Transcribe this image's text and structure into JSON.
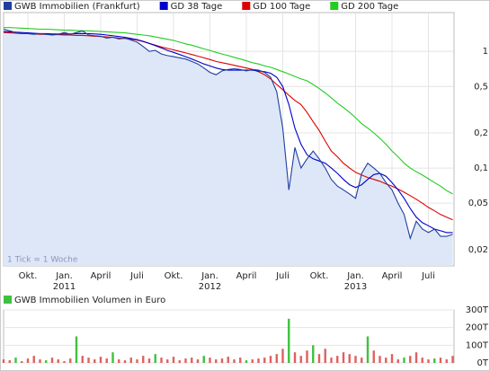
{
  "chart_data": [
    {
      "type": "line",
      "log_scale": true,
      "grid": true,
      "annotation": "1 Tick = 1 Woche",
      "ylim": [
        0.0145,
        2.15
      ],
      "yticks": [
        {
          "value": 0.02,
          "label": "0,02"
        },
        {
          "value": 0.05,
          "label": "0,05"
        },
        {
          "value": 0.1,
          "label": "0,1"
        },
        {
          "value": 0.2,
          "label": "0,2"
        },
        {
          "value": 0.5,
          "label": "0,5"
        },
        1
      ],
      "categories": [
        null,
        null,
        null,
        null,
        "Okt.",
        null,
        null,
        null,
        null,
        null,
        "Jan. 2011",
        null,
        null,
        null,
        null,
        null,
        "April",
        null,
        null,
        null,
        null,
        null,
        "Juli",
        null,
        null,
        null,
        null,
        null,
        "Okt.",
        null,
        null,
        null,
        null,
        null,
        "Jan. 2012",
        null,
        null,
        null,
        null,
        null,
        "April",
        null,
        null,
        null,
        null,
        null,
        "Juli",
        null,
        null,
        null,
        null,
        null,
        "Okt.",
        null,
        null,
        null,
        null,
        null,
        "Jan. 2013",
        null,
        null,
        null,
        null,
        null,
        "April",
        null,
        null,
        null,
        null,
        null,
        "Juli",
        null,
        null,
        null,
        null
      ],
      "series": [
        {
          "name": "GWB Immobilien (Frankfurt)",
          "color": "#1f3f9f",
          "area_color": "#dde7f8",
          "values": [
            1.55,
            1.5,
            1.45,
            1.42,
            1.42,
            1.4,
            1.42,
            1.4,
            1.38,
            1.4,
            1.45,
            1.4,
            1.45,
            1.5,
            1.38,
            1.36,
            1.35,
            1.3,
            1.32,
            1.28,
            1.3,
            1.25,
            1.2,
            1.1,
            1.0,
            1.02,
            0.95,
            0.92,
            0.9,
            0.88,
            0.86,
            0.82,
            0.78,
            0.72,
            0.66,
            0.63,
            0.68,
            0.7,
            0.71,
            0.7,
            0.68,
            0.7,
            0.69,
            0.66,
            0.6,
            0.45,
            0.22,
            0.065,
            0.15,
            0.1,
            0.12,
            0.14,
            0.12,
            0.1,
            0.08,
            0.07,
            0.065,
            0.06,
            0.055,
            0.09,
            0.11,
            0.1,
            0.09,
            0.075,
            0.065,
            0.05,
            0.04,
            0.025,
            0.035,
            0.03,
            0.028,
            0.03,
            0.026,
            0.026,
            0.027
          ]
        },
        {
          "name": "GD 38 Tage",
          "color": "#0000cc",
          "values": [
            1.48,
            1.47,
            1.46,
            1.45,
            1.44,
            1.43,
            1.42,
            1.42,
            1.41,
            1.41,
            1.41,
            1.41,
            1.42,
            1.42,
            1.42,
            1.41,
            1.4,
            1.38,
            1.36,
            1.34,
            1.32,
            1.29,
            1.26,
            1.22,
            1.17,
            1.12,
            1.07,
            1.02,
            0.98,
            0.94,
            0.9,
            0.86,
            0.82,
            0.78,
            0.75,
            0.72,
            0.7,
            0.69,
            0.69,
            0.69,
            0.69,
            0.69,
            0.68,
            0.67,
            0.65,
            0.6,
            0.5,
            0.35,
            0.22,
            0.16,
            0.13,
            0.12,
            0.115,
            0.11,
            0.1,
            0.09,
            0.08,
            0.072,
            0.068,
            0.072,
            0.08,
            0.088,
            0.09,
            0.085,
            0.075,
            0.065,
            0.055,
            0.045,
            0.038,
            0.034,
            0.032,
            0.03,
            0.029,
            0.028,
            0.028
          ]
        },
        {
          "name": "GD 100 Tage",
          "color": "#dd0000",
          "values": [
            1.45,
            1.44,
            1.43,
            1.42,
            1.42,
            1.41,
            1.4,
            1.4,
            1.39,
            1.39,
            1.38,
            1.38,
            1.37,
            1.37,
            1.36,
            1.35,
            1.34,
            1.33,
            1.32,
            1.3,
            1.29,
            1.27,
            1.25,
            1.21,
            1.17,
            1.13,
            1.09,
            1.06,
            1.03,
            1.0,
            0.97,
            0.94,
            0.91,
            0.88,
            0.85,
            0.82,
            0.8,
            0.78,
            0.76,
            0.74,
            0.72,
            0.7,
            0.67,
            0.63,
            0.58,
            0.52,
            0.47,
            0.42,
            0.38,
            0.35,
            0.3,
            0.25,
            0.21,
            0.17,
            0.14,
            0.125,
            0.11,
            0.1,
            0.092,
            0.087,
            0.083,
            0.08,
            0.077,
            0.073,
            0.07,
            0.066,
            0.062,
            0.058,
            0.054,
            0.05,
            0.046,
            0.043,
            0.04,
            0.038,
            0.036
          ]
        },
        {
          "name": "GD 200 Tage",
          "color": "#22cc22",
          "values": [
            1.6,
            1.6,
            1.59,
            1.58,
            1.57,
            1.56,
            1.55,
            1.55,
            1.54,
            1.53,
            1.52,
            1.52,
            1.51,
            1.5,
            1.5,
            1.49,
            1.48,
            1.47,
            1.46,
            1.45,
            1.44,
            1.42,
            1.4,
            1.38,
            1.36,
            1.33,
            1.3,
            1.27,
            1.24,
            1.2,
            1.16,
            1.13,
            1.09,
            1.05,
            1.02,
            0.98,
            0.95,
            0.92,
            0.89,
            0.86,
            0.83,
            0.8,
            0.78,
            0.75,
            0.73,
            0.7,
            0.67,
            0.64,
            0.61,
            0.58,
            0.56,
            0.52,
            0.48,
            0.44,
            0.4,
            0.36,
            0.33,
            0.3,
            0.27,
            0.24,
            0.22,
            0.2,
            0.18,
            0.16,
            0.14,
            0.125,
            0.11,
            0.1,
            0.093,
            0.087,
            0.081,
            0.075,
            0.07,
            0.064,
            0.06
          ]
        }
      ]
    },
    {
      "type": "bar",
      "grid": true,
      "ylim": [
        0,
        300000
      ],
      "yticks": [
        {
          "value": 0,
          "label": "0T"
        },
        {
          "value": 100000,
          "label": "100T"
        },
        {
          "value": 200000,
          "label": "200T"
        },
        {
          "value": 300000,
          "label": "300T"
        }
      ],
      "series": [
        {
          "name": "GWB Immobilien Volumen in Euro",
          "color": "#40c040",
          "values": [
            20000,
            15000,
            30000,
            10000,
            25000,
            40000,
            20000,
            15000,
            30000,
            20000,
            10000,
            25000,
            150000,
            40000,
            30000,
            20000,
            35000,
            25000,
            60000,
            20000,
            15000,
            30000,
            20000,
            40000,
            25000,
            50000,
            30000,
            20000,
            35000,
            15000,
            25000,
            30000,
            20000,
            40000,
            30000,
            20000,
            25000,
            35000,
            20000,
            30000,
            15000,
            20000,
            25000,
            30000,
            40000,
            50000,
            80000,
            250000,
            60000,
            40000,
            70000,
            100000,
            50000,
            80000,
            30000,
            40000,
            60000,
            50000,
            40000,
            30000,
            150000,
            70000,
            40000,
            30000,
            50000,
            20000,
            30000,
            40000,
            60000,
            30000,
            20000,
            25000,
            30000,
            20000,
            40000
          ],
          "colors": [
            "#e06060",
            "#e06060",
            "#40c040",
            "#e06060",
            "#e06060",
            "#e06060",
            "#e06060",
            "#40c040",
            "#e06060",
            "#e06060",
            "#e06060",
            "#e06060",
            "#40c040",
            "#e06060",
            "#e06060",
            "#e06060",
            "#e06060",
            "#e06060",
            "#40c040",
            "#e06060",
            "#e06060",
            "#e06060",
            "#e06060",
            "#e06060",
            "#e06060",
            "#40c040",
            "#e06060",
            "#e06060",
            "#e06060",
            "#e06060",
            "#e06060",
            "#e06060",
            "#e06060",
            "#40c040",
            "#e06060",
            "#e06060",
            "#e06060",
            "#e06060",
            "#e06060",
            "#e06060",
            "#40c040",
            "#e06060",
            "#e06060",
            "#e06060",
            "#e06060",
            "#e06060",
            "#e06060",
            "#40c040",
            "#e06060",
            "#e06060",
            "#e06060",
            "#40c040",
            "#e06060",
            "#e06060",
            "#e06060",
            "#e06060",
            "#e06060",
            "#e06060",
            "#e06060",
            "#e06060",
            "#40c040",
            "#e06060",
            "#e06060",
            "#e06060",
            "#e06060",
            "#e06060",
            "#40c040",
            "#e06060",
            "#e06060",
            "#e06060",
            "#e06060",
            "#40c040",
            "#e06060",
            "#e06060",
            "#e06060"
          ]
        }
      ]
    }
  ]
}
